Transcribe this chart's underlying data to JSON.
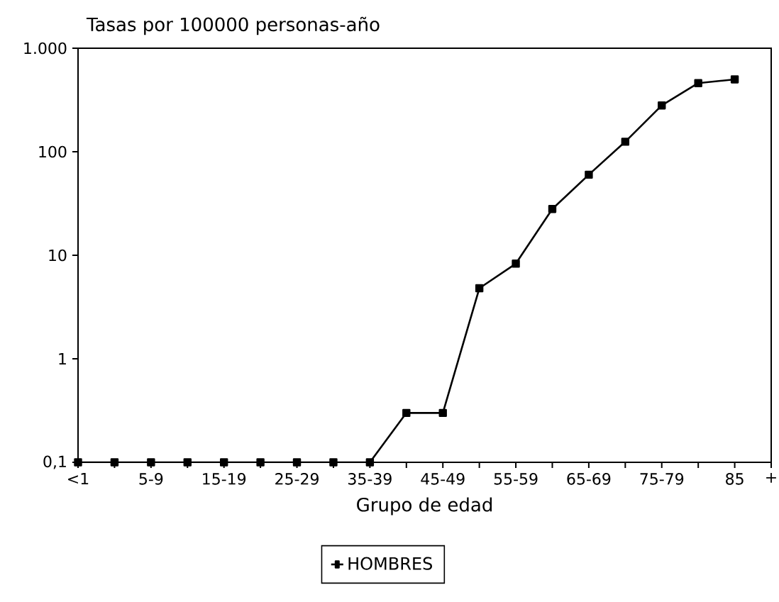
{
  "chart_data": {
    "type": "line",
    "ylabel": "Tasas por 100000 personas-año",
    "xlabel": "Grupo de edad",
    "categories": [
      "<1",
      null,
      "5-9",
      null,
      "15-19",
      null,
      "25-29",
      null,
      "35-39",
      null,
      "45-49",
      null,
      "55-59",
      null,
      "65-69",
      null,
      "75-79",
      null,
      "85",
      "+"
    ],
    "series": [
      {
        "name": "HOMBRES",
        "color": "#000000",
        "values": [
          0.1,
          0.1,
          0.1,
          0.1,
          0.1,
          0.1,
          0.1,
          0.1,
          0.1,
          0.3,
          0.3,
          4.8,
          8.3,
          28,
          60,
          125,
          280,
          460,
          500,
          null
        ]
      }
    ],
    "log": "y",
    "ylim": [
      0.1,
      1000
    ],
    "yticks": [
      {
        "value": 0.1,
        "label": "0,1"
      },
      1,
      10,
      100,
      {
        "value": 1000,
        "label": "1.000"
      }
    ],
    "grid": false,
    "legend": "bottom",
    "marker": "square",
    "line_style": "solid"
  }
}
